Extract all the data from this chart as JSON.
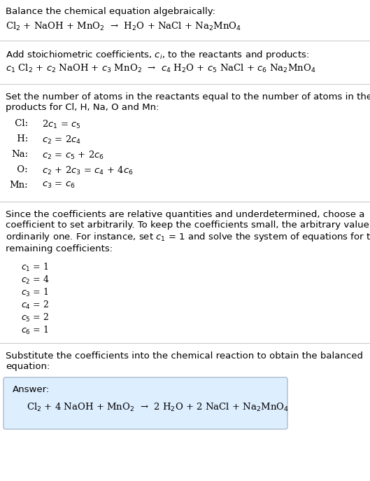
{
  "background_color": "#ffffff",
  "section1_title": "Balance the chemical equation algebraically:",
  "eq1": "Cl$_2$ + NaOH + MnO$_2$  →  H$_2$O + NaCl + Na$_2$MnO$_4$",
  "section2_title": "Add stoichiometric coefficients, $c_i$, to the reactants and products:",
  "eq2": "$c_1$ Cl$_2$ + $c_2$ NaOH + $c_3$ MnO$_2$  →  $c_4$ H$_2$O + $c_5$ NaCl + $c_6$ Na$_2$MnO$_4$",
  "section3_title": "Set the number of atoms in the reactants equal to the number of atoms in the\nproducts for Cl, H, Na, O and Mn:",
  "atom_equations_label": [
    " Cl:",
    " H:",
    "Na:",
    " O:",
    "Mn:"
  ],
  "atom_equations_rhs": [
    "2$c_1$ = $c_5$",
    "$c_2$ = 2$c_4$",
    "$c_2$ = $c_5$ + 2$c_6$",
    "$c_2$ + 2$c_3$ = $c_4$ + 4$c_6$",
    "$c_3$ = $c_6$"
  ],
  "section4_text": "Since the coefficients are relative quantities and underdetermined, choose a\ncoefficient to set arbitrarily. To keep the coefficients small, the arbitrary value is\nordinarily one. For instance, set $c_1$ = 1 and solve the system of equations for the\nremaining coefficients:",
  "coefficients": [
    "$c_1$ = 1",
    "$c_2$ = 4",
    "$c_3$ = 1",
    "$c_4$ = 2",
    "$c_5$ = 2",
    "$c_6$ = 1"
  ],
  "section5_text": "Substitute the coefficients into the chemical reaction to obtain the balanced\nequation:",
  "answer_label": "Answer:",
  "answer_eq": "Cl$_2$ + 4 NaOH + MnO$_2$  →  2 H$_2$O + 2 NaCl + Na$_2$MnO$_4$",
  "answer_box_color": "#ddeeff",
  "answer_box_edge": "#aabbcc",
  "sep_color": "#cccccc",
  "fs_body": 9.5,
  "fs_math": 9.5,
  "fs_mono": 9.0
}
